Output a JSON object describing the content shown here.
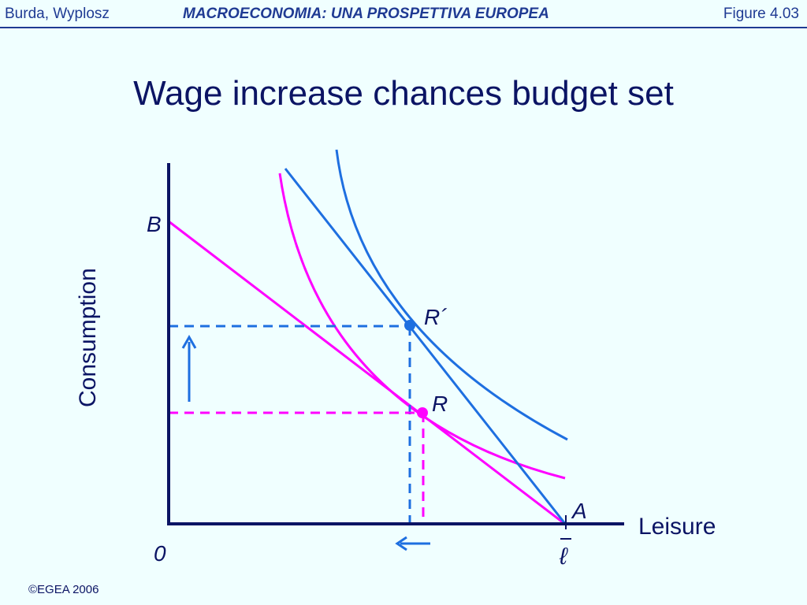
{
  "header": {
    "authors": "Burda, Wyplosz",
    "book_title": "MACROECONOMIA: UNA PROSPETTIVA EUROPEA",
    "figure_ref": "Figure 4.03"
  },
  "slide": {
    "title": "Wage increase chances budget set",
    "footer": "©EGEA 2006"
  },
  "diagram": {
    "y_axis_label": "Consumption",
    "x_axis_label": "Leisure",
    "origin_label": "0",
    "lbar_label": "ℓ",
    "point_B": "B",
    "point_A": "A",
    "point_R": "R",
    "point_R_prime": "R´",
    "colors": {
      "axis": "#0B1464",
      "old_budget": "#FF00FF",
      "new_budget": "#1E6FE0"
    }
  }
}
